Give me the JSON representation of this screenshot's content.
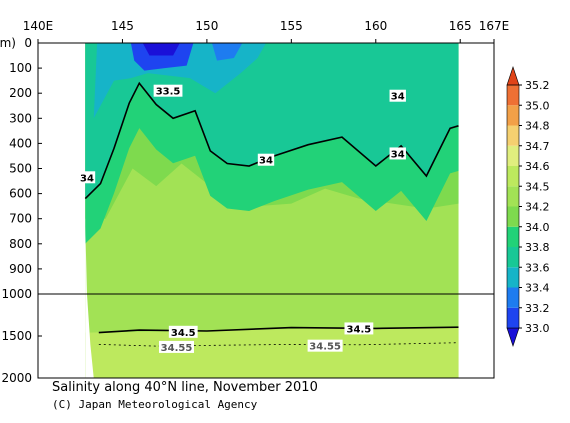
{
  "chart_data": {
    "type": "heatmap",
    "title": "Salinity along 40°N line, November 2010",
    "credit": "(C) Japan Meteorological Agency",
    "xlabel": "",
    "ylabel": "",
    "y_unit_label": "(m)",
    "x_tick_labels": [
      "140E",
      "145",
      "150",
      "155",
      "160",
      "165",
      "167E"
    ],
    "x_ticks": [
      140,
      145,
      150,
      155,
      160,
      165,
      167
    ],
    "xlim": [
      140,
      167
    ],
    "y_upper_ticks": [
      0,
      100,
      200,
      300,
      400,
      500,
      600,
      700,
      800,
      900,
      1000
    ],
    "y_lower_ticks": [
      1500,
      2000
    ],
    "ylim": [
      0,
      2000
    ],
    "y_break_depth": 1000,
    "data_extent_x": [
      142.8,
      164.9
    ],
    "colorbar": {
      "levels": [
        33.0,
        33.2,
        33.4,
        33.6,
        33.8,
        34.0,
        34.2,
        34.5,
        34.6,
        34.7,
        34.8,
        35.0,
        35.2
      ],
      "colors": [
        "#1A10D8",
        "#1E44F0",
        "#1E7CF0",
        "#16B4C8",
        "#18C896",
        "#22D278",
        "#7EDA4E",
        "#A2E255",
        "#BDE95E",
        "#E0EE7E",
        "#F5D070",
        "#F2A048",
        "#EE7034",
        "#E04418"
      ]
    },
    "contour_labels": [
      {
        "text": "33.5",
        "lon": 147.7,
        "depth": 190
      },
      {
        "text": "34",
        "lon": 161.3,
        "depth": 210
      },
      {
        "text": "34",
        "lon": 153.5,
        "depth": 465
      },
      {
        "text": "34",
        "lon": 161.3,
        "depth": 440
      },
      {
        "text": "34",
        "lon": 142.9,
        "depth": 535
      },
      {
        "text": "34.5",
        "lon": 148.6,
        "depth": 1450
      },
      {
        "text": "34.5",
        "lon": 159.0,
        "depth": 1410
      },
      {
        "text": "34.55",
        "lon": 148.2,
        "depth": 1630
      },
      {
        "text": "34.55",
        "lon": 157.0,
        "depth": 1615
      }
    ],
    "isoline_34": [
      {
        "lon": 142.8,
        "depth": 620
      },
      {
        "lon": 143.7,
        "depth": 560
      },
      {
        "lon": 144.5,
        "depth": 420
      },
      {
        "lon": 145.4,
        "depth": 240
      },
      {
        "lon": 146.0,
        "depth": 160
      },
      {
        "lon": 147.0,
        "depth": 245
      },
      {
        "lon": 148.0,
        "depth": 300
      },
      {
        "lon": 149.3,
        "depth": 270
      },
      {
        "lon": 150.2,
        "depth": 430
      },
      {
        "lon": 151.2,
        "depth": 480
      },
      {
        "lon": 152.5,
        "depth": 490
      },
      {
        "lon": 154.0,
        "depth": 450
      },
      {
        "lon": 156.0,
        "depth": 405
      },
      {
        "lon": 158.0,
        "depth": 375
      },
      {
        "lon": 160.0,
        "depth": 490
      },
      {
        "lon": 161.5,
        "depth": 410
      },
      {
        "lon": 163.0,
        "depth": 530
      },
      {
        "lon": 164.4,
        "depth": 340
      },
      {
        "lon": 164.9,
        "depth": 330
      }
    ],
    "isoline_34_5": [
      {
        "lon": 143.6,
        "depth": 1460
      },
      {
        "lon": 146.0,
        "depth": 1430
      },
      {
        "lon": 150.0,
        "depth": 1440
      },
      {
        "lon": 155.0,
        "depth": 1400
      },
      {
        "lon": 160.0,
        "depth": 1410
      },
      {
        "lon": 164.9,
        "depth": 1395
      }
    ],
    "isoline_34_55": [
      {
        "lon": 143.6,
        "depth": 1600
      },
      {
        "lon": 147.0,
        "depth": 1620
      },
      {
        "lon": 151.0,
        "depth": 1610
      },
      {
        "lon": 155.0,
        "depth": 1600
      },
      {
        "lon": 159.0,
        "depth": 1605
      },
      {
        "lon": 164.9,
        "depth": 1580
      }
    ]
  }
}
